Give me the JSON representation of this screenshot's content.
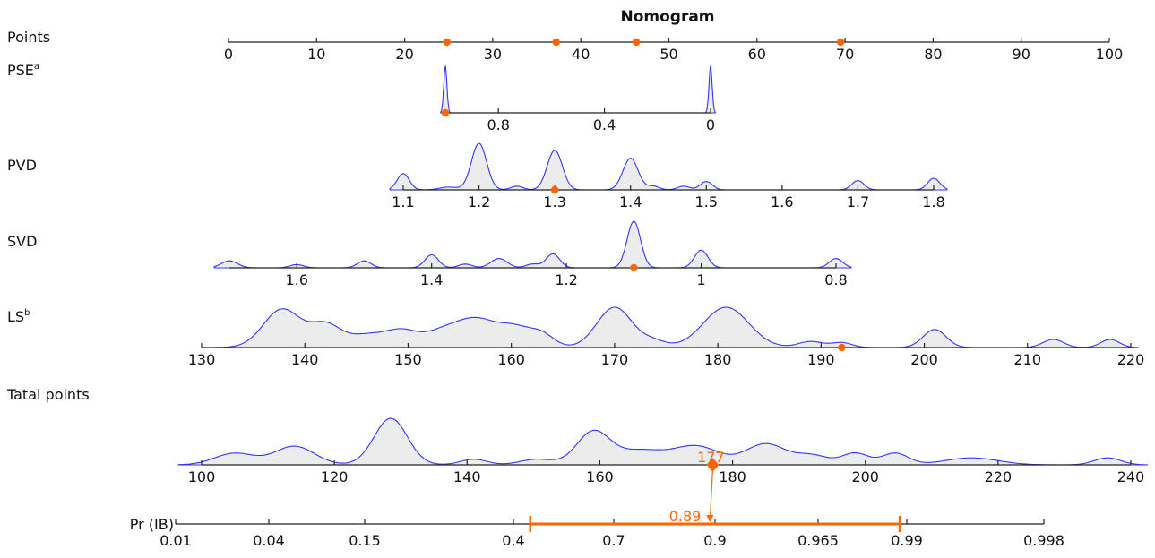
{
  "chart_data": {
    "type": "nomogram",
    "title": "Nomogram",
    "colors": {
      "axis": "#222222",
      "density_fill": "#ececec",
      "density_line": "#3333ff",
      "highlight": "#ff6600"
    },
    "rows": [
      {
        "id": "points",
        "label": "Points",
        "label_sup": "",
        "axis_min": 0,
        "axis_max": 100,
        "ticks": [
          {
            "v": 0,
            "t": "0"
          },
          {
            "v": 10,
            "t": "10"
          },
          {
            "v": 20,
            "t": "20"
          },
          {
            "v": 30,
            "t": "30"
          },
          {
            "v": 40,
            "t": "40"
          },
          {
            "v": 50,
            "t": "50"
          },
          {
            "v": 60,
            "t": "60"
          },
          {
            "v": 70,
            "t": "70"
          },
          {
            "v": 80,
            "t": "80"
          },
          {
            "v": 90,
            "t": "90"
          },
          {
            "v": 100,
            "t": "100"
          }
        ],
        "markers": [
          24.8,
          37.2,
          46.3,
          69.5
        ],
        "density": []
      },
      {
        "id": "pse",
        "label": "PSE",
        "label_sup": "a",
        "axis_min": 1,
        "axis_max": 0,
        "ticks": [
          {
            "v": 0.8,
            "t": "0.8"
          },
          {
            "v": 0.4,
            "t": "0.4"
          },
          {
            "v": 0,
            "t": "0"
          }
        ],
        "markers": [
          1
        ],
        "density": [
          [
            1,
            1.0,
            0.006
          ],
          [
            0,
            1.0,
            0.006
          ]
        ]
      },
      {
        "id": "pvd",
        "label": "PVD",
        "label_sup": "",
        "axis_min": 1.1,
        "axis_max": 1.8,
        "ticks": [
          {
            "v": 1.1,
            "t": "1.1"
          },
          {
            "v": 1.2,
            "t": "1.2"
          },
          {
            "v": 1.3,
            "t": "1.3"
          },
          {
            "v": 1.4,
            "t": "1.4"
          },
          {
            "v": 1.5,
            "t": "1.5"
          },
          {
            "v": 1.6,
            "t": "1.6"
          },
          {
            "v": 1.7,
            "t": "1.7"
          },
          {
            "v": 1.8,
            "t": "1.8"
          }
        ],
        "markers": [
          1.3
        ],
        "density": [
          [
            1.1,
            0.35,
            0.008
          ],
          [
            1.16,
            0.06,
            0.012
          ],
          [
            1.2,
            1.0,
            0.01
          ],
          [
            1.25,
            0.08,
            0.008
          ],
          [
            1.3,
            0.85,
            0.01
          ],
          [
            1.4,
            0.68,
            0.01
          ],
          [
            1.43,
            0.08,
            0.008
          ],
          [
            1.47,
            0.08,
            0.008
          ],
          [
            1.5,
            0.18,
            0.008
          ],
          [
            1.7,
            0.2,
            0.008
          ],
          [
            1.8,
            0.25,
            0.008
          ]
        ]
      },
      {
        "id": "svd",
        "label": "SVD",
        "label_sup": "",
        "axis_min": 1.7,
        "axis_max": 0.8,
        "ticks": [
          {
            "v": 1.6,
            "t": "1.6"
          },
          {
            "v": 1.4,
            "t": "1.4"
          },
          {
            "v": 1.2,
            "t": "1.2"
          },
          {
            "v": 1,
            "t": "1"
          },
          {
            "v": 0.8,
            "t": "0.8"
          }
        ],
        "markers": [
          1.1
        ],
        "density": [
          [
            1.7,
            0.15,
            0.012
          ],
          [
            1.6,
            0.07,
            0.01
          ],
          [
            1.5,
            0.15,
            0.01
          ],
          [
            1.4,
            0.28,
            0.01
          ],
          [
            1.35,
            0.08,
            0.01
          ],
          [
            1.3,
            0.2,
            0.012
          ],
          [
            1.25,
            0.08,
            0.01
          ],
          [
            1.22,
            0.3,
            0.01
          ],
          [
            1.1,
            1.0,
            0.01
          ],
          [
            1.0,
            0.38,
            0.01
          ],
          [
            0.8,
            0.2,
            0.01
          ]
        ]
      },
      {
        "id": "ls",
        "label": "LS",
        "label_sup": "b",
        "axis_min": 130,
        "axis_max": 220,
        "ticks": [
          {
            "v": 130,
            "t": "130"
          },
          {
            "v": 140,
            "t": "140"
          },
          {
            "v": 150,
            "t": "150"
          },
          {
            "v": 160,
            "t": "160"
          },
          {
            "v": 170,
            "t": "170"
          },
          {
            "v": 180,
            "t": "180"
          },
          {
            "v": 190,
            "t": "190"
          },
          {
            "v": 200,
            "t": "200"
          },
          {
            "v": 210,
            "t": "210"
          },
          {
            "v": 220,
            "t": "220"
          }
        ],
        "markers": [
          192
        ],
        "density": [
          [
            137.8,
            0.95,
            1.8
          ],
          [
            142,
            0.55,
            1.5
          ],
          [
            146,
            0.3,
            1.8
          ],
          [
            149.5,
            0.4,
            1.6
          ],
          [
            153,
            0.25,
            1.5
          ],
          [
            156.5,
            0.72,
            2.2
          ],
          [
            160.5,
            0.4,
            1.5
          ],
          [
            163,
            0.3,
            1.2
          ],
          [
            170,
            1.0,
            1.7
          ],
          [
            173.8,
            0.15,
            1.2
          ],
          [
            180.8,
            1.0,
            2.2
          ],
          [
            189,
            0.15,
            1.2
          ],
          [
            192,
            0.12,
            1.0
          ],
          [
            201,
            0.45,
            1.1
          ],
          [
            212.5,
            0.2,
            1.0
          ],
          [
            218,
            0.2,
            0.9
          ]
        ]
      },
      {
        "id": "total",
        "label": "Tatal points",
        "label_sup": "",
        "axis_min": 100,
        "axis_max": 240,
        "ticks": [
          {
            "v": 100,
            "t": "100"
          },
          {
            "v": 120,
            "t": "120"
          },
          {
            "v": 140,
            "t": "140"
          },
          {
            "v": 160,
            "t": "160"
          },
          {
            "v": 180,
            "t": "180"
          },
          {
            "v": 200,
            "t": "200"
          },
          {
            "v": 220,
            "t": "220"
          },
          {
            "v": 240,
            "t": "240"
          }
        ],
        "markers": [],
        "density": [
          [
            105,
            0.25,
            3.0
          ],
          [
            114,
            0.4,
            3.0
          ],
          [
            128.5,
            1.0,
            2.5
          ],
          [
            141,
            0.12,
            2.0
          ],
          [
            150.5,
            0.12,
            2.5
          ],
          [
            159,
            0.7,
            2.5
          ],
          [
            166,
            0.3,
            3.5
          ],
          [
            174.5,
            0.4,
            3.5
          ],
          [
            185,
            0.45,
            3.0
          ],
          [
            192,
            0.2,
            2.5
          ],
          [
            198.5,
            0.25,
            2.0
          ],
          [
            204.5,
            0.25,
            2.0
          ],
          [
            216,
            0.15,
            4.0
          ],
          [
            236.5,
            0.15,
            2.0
          ]
        ]
      }
    ],
    "probability_axis": {
      "label": "Pr (IB)",
      "ticks": [
        "0.01",
        "0.04",
        "0.15",
        "0.4",
        "0.7",
        "0.9",
        "0.965",
        "0.99",
        "0.998"
      ]
    },
    "result": {
      "total_points": 177,
      "total_label": "177",
      "probability": 0.89,
      "probability_label": "0.89",
      "ci_low": 0.45,
      "ci_high": 0.988
    }
  }
}
